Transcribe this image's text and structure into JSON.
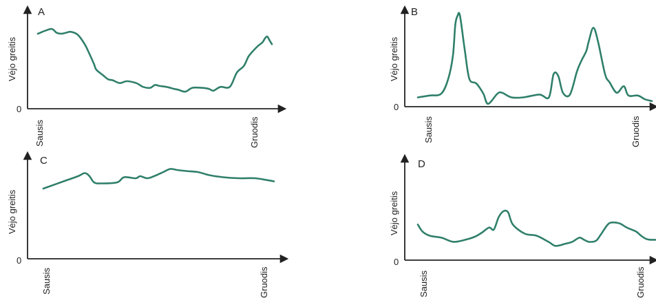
{
  "colors": {
    "line": "#2f7f6a",
    "axis": "#222222"
  },
  "chart_data": [
    {
      "type": "line",
      "panel": "A",
      "ylabel": "Vėjo greitis",
      "y_zero_label": "0",
      "x_start_label": "Sausis",
      "x_end_label": "Gruodis",
      "x": [
        0,
        3,
        6,
        8,
        10,
        12,
        14,
        17,
        20,
        22,
        24,
        25,
        28,
        30,
        32,
        35,
        38,
        42,
        45,
        48,
        50,
        52,
        55,
        58,
        60,
        63,
        66,
        70,
        73,
        75,
        78,
        82,
        85,
        88,
        90,
        92,
        94,
        96,
        97,
        98,
        99,
        100
      ],
      "values": [
        79,
        82,
        84,
        80,
        79,
        80,
        81,
        78,
        68,
        58,
        47,
        41,
        35,
        31,
        30,
        27,
        29,
        27,
        23,
        22,
        25,
        24,
        23,
        21,
        20,
        18,
        22,
        22,
        21,
        19,
        23,
        23,
        38,
        45,
        55,
        61,
        66,
        70,
        74,
        76,
        72,
        68
      ],
      "ylim": [
        0,
        100
      ]
    },
    {
      "type": "line",
      "panel": "B",
      "ylabel": "Vėjo greitis",
      "y_zero_label": "0",
      "x_start_label": "Sausis",
      "x_end_label": "Gruodis",
      "x": [
        0,
        5,
        10,
        13,
        15,
        16,
        17,
        18,
        20,
        22,
        25,
        28,
        30,
        34,
        36,
        40,
        45,
        52,
        56,
        58,
        60,
        62,
        65,
        68,
        70,
        72,
        73,
        75,
        77,
        80,
        82,
        85,
        88,
        90,
        94,
        97,
        100
      ],
      "values": [
        10,
        12,
        14,
        30,
        55,
        88,
        98,
        98,
        62,
        30,
        25,
        14,
        3,
        14,
        15,
        10,
        10,
        13,
        10,
        35,
        33,
        15,
        13,
        38,
        50,
        60,
        70,
        85,
        70,
        35,
        26,
        15,
        22,
        12,
        12,
        8,
        6
      ],
      "ylim": [
        0,
        100
      ]
    },
    {
      "type": "line",
      "panel": "C",
      "ylabel": "Vėjo greitis",
      "y_zero_label": "0",
      "x_start_label": "Sausis",
      "x_end_label": "Gruodis",
      "x": [
        0,
        10,
        15,
        18,
        20,
        22,
        25,
        32,
        35,
        40,
        42,
        45,
        48,
        52,
        55,
        58,
        62,
        67,
        72,
        78,
        85,
        92,
        100
      ],
      "values": [
        68,
        76,
        80,
        83,
        80,
        74,
        73,
        74,
        79,
        78,
        80,
        78,
        80,
        84,
        87,
        86,
        85,
        84,
        81,
        79,
        78,
        78,
        75
      ],
      "ylim": [
        0,
        100
      ]
    },
    {
      "type": "line",
      "panel": "D",
      "ylabel": "Vėjo greitis",
      "y_zero_label": "0",
      "x_start_label": "Sausis",
      "x_end_label": "Gruodis",
      "x": [
        0,
        2,
        5,
        10,
        15,
        20,
        24,
        27,
        30,
        32,
        34,
        36,
        38,
        40,
        45,
        50,
        55,
        58,
        62,
        65,
        68,
        70,
        72,
        75,
        77,
        80,
        82,
        85,
        88,
        90,
        92,
        94,
        96,
        98,
        100
      ],
      "values": [
        35,
        28,
        24,
        22,
        18,
        20,
        23,
        27,
        32,
        30,
        42,
        48,
        47,
        35,
        26,
        24,
        18,
        14,
        16,
        18,
        22,
        20,
        18,
        19,
        25,
        35,
        37,
        36,
        32,
        30,
        28,
        24,
        21,
        20,
        20
      ],
      "ylim": [
        0,
        100
      ]
    }
  ]
}
